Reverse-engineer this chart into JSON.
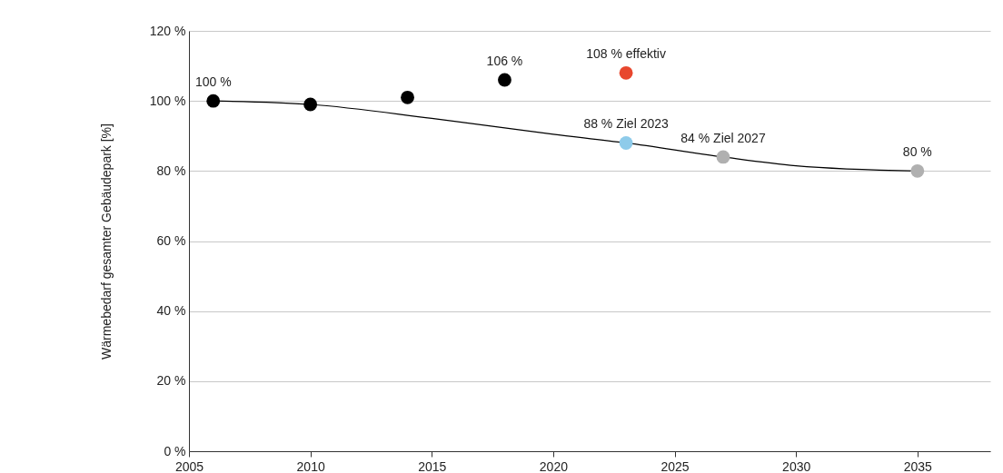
{
  "chart_data": {
    "type": "scatter",
    "ylabel": "Wärmebedarf gesamter Gebäudepark [%]",
    "xlim": [
      2005,
      2038
    ],
    "xticks": [
      2005,
      2010,
      2015,
      2020,
      2025,
      2030,
      2035
    ],
    "ylim": [
      0,
      120
    ],
    "yticks": [
      {
        "value": 0,
        "label": "0 %"
      },
      {
        "value": 20,
        "label": "20 %"
      },
      {
        "value": 40,
        "label": "40 %"
      },
      {
        "value": 60,
        "label": "60 %"
      },
      {
        "value": 80,
        "label": "80 %"
      },
      {
        "value": 100,
        "label": "100 %"
      },
      {
        "value": 120,
        "label": "120 %"
      }
    ],
    "grid": "y",
    "marker": "circle",
    "series": [
      {
        "type": "line",
        "marker": "none",
        "color": "#000000",
        "x": [
          2006,
          2010,
          2015,
          2020,
          2023,
          2027,
          2030,
          2035
        ],
        "values": [
          100,
          99,
          95,
          90.5,
          88,
          84,
          81.5,
          80
        ]
      },
      {
        "x": [
          2006,
          2010,
          2014,
          2018,
          2023,
          2023,
          2027,
          2035
        ],
        "values": [
          100,
          99,
          101,
          106,
          108,
          88,
          84,
          80
        ],
        "colors": [
          "#000000",
          "#000000",
          "#000000",
          "#000000",
          "#e8472e",
          "#8ecbea",
          "#b0b0b0",
          "#b0b0b0"
        ]
      }
    ],
    "annotations": [
      {
        "text": "100 %",
        "x": 2006,
        "y": 100
      },
      {
        "text": "106 %",
        "x": 2018,
        "y": 106
      },
      {
        "text": "108 % effektiv",
        "x": 2023,
        "y": 108
      },
      {
        "text": "88 % Ziel 2023",
        "x": 2023,
        "y": 88
      },
      {
        "text": "84 % Ziel 2027",
        "x": 2027,
        "y": 84
      },
      {
        "text": "80 %",
        "x": 2035,
        "y": 80
      }
    ]
  }
}
